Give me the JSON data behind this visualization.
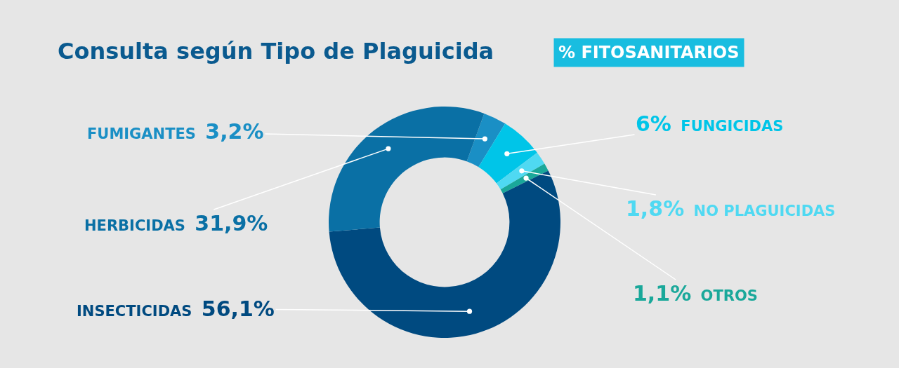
{
  "chart_data": {
    "type": "donut",
    "title": "Consulta según Tipo de Plaguicida",
    "subtitle": "% FITOSANITARIOS",
    "categories": [
      "FUMIGANTES",
      "FUNGICIDAS",
      "NO PLAGUICIDAS",
      "OTROS",
      "INSECTICIDAS",
      "HERBICIDAS"
    ],
    "values": [
      3.2,
      6,
      1.8,
      1.1,
      56.1,
      31.9
    ],
    "colors": [
      "#1a8fc5",
      "#00c5e8",
      "#4fd9f2",
      "#1aa89a",
      "#004a80",
      "#0a70a5"
    ],
    "value_labels": [
      "3,2%",
      "6%",
      "1,8%",
      "1,1%",
      "56,1%",
      "31,9%"
    ]
  }
}
